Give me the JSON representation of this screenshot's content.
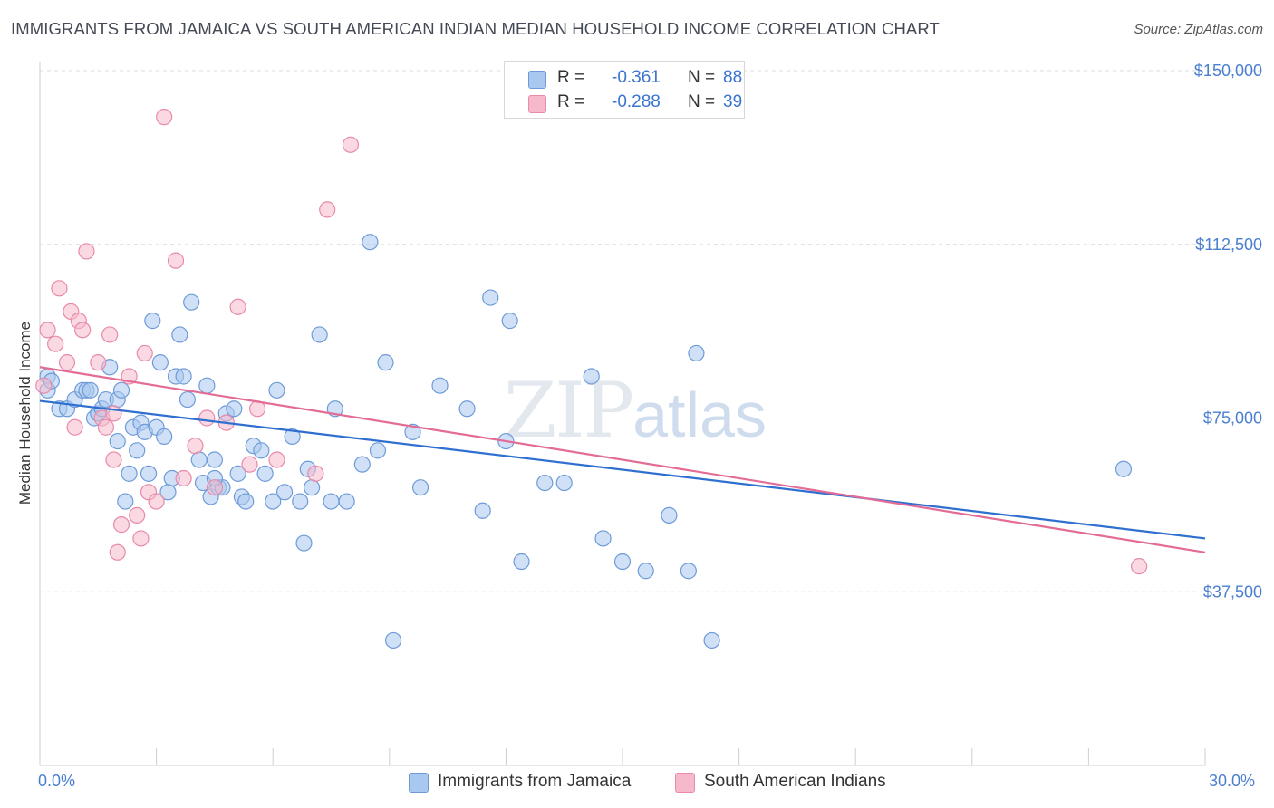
{
  "title": "IMMIGRANTS FROM JAMAICA VS SOUTH AMERICAN INDIAN MEDIAN HOUSEHOLD INCOME CORRELATION CHART",
  "source": "Source: ZipAtlas.com",
  "watermark": {
    "zip": "ZIP",
    "atlas": "atlas"
  },
  "legend": {
    "rows": [
      {
        "r_label": "R =",
        "r_value": "-0.361",
        "n_label": "N =",
        "n_value": "88",
        "color": "#a9c8f0"
      },
      {
        "r_label": "R =",
        "r_value": "-0.288",
        "n_label": "N =",
        "n_value": "39",
        "color": "#f6b9cc"
      }
    ]
  },
  "bottom_legend": [
    "Immigrants from Jamaica",
    "South American Indians"
  ],
  "colors": {
    "blue_fill": "#a9c8f0",
    "blue_stroke": "#6e9bd8",
    "blue_line": "#2f6fd0",
    "pink_fill": "#f6b9cc",
    "pink_stroke": "#e88aa8",
    "pink_line": "#e36c95",
    "tick_text": "#4a7fd0"
  },
  "chart_data": {
    "type": "scatter",
    "title": "IMMIGRANTS FROM JAMAICA VS SOUTH AMERICAN INDIAN MEDIAN HOUSEHOLD INCOME CORRELATION CHART",
    "xlabel": "",
    "ylabel": "Median Household Income",
    "xlim": [
      0,
      30
    ],
    "ylim": [
      0,
      155000
    ],
    "x_tick_labels": [
      "0.0%",
      "30.0%"
    ],
    "y_ticks": [
      37500,
      75000,
      112500,
      150000
    ],
    "y_tick_labels": [
      "$37,500",
      "$75,000",
      "$112,500",
      "$150,000"
    ],
    "grid": "horizontal dashed",
    "legend_position": "top-center",
    "series": [
      {
        "name": "Immigrants from Jamaica",
        "points": [
          [
            0.2,
            84000
          ],
          [
            0.2,
            81000
          ],
          [
            0.3,
            83000
          ],
          [
            0.5,
            77000
          ],
          [
            0.7,
            77000
          ],
          [
            0.9,
            79000
          ],
          [
            1.1,
            81000
          ],
          [
            1.2,
            81000
          ],
          [
            1.3,
            81000
          ],
          [
            1.4,
            75000
          ],
          [
            1.5,
            76000
          ],
          [
            1.6,
            77000
          ],
          [
            1.7,
            79000
          ],
          [
            1.8,
            86000
          ],
          [
            2.0,
            79000
          ],
          [
            2.0,
            70000
          ],
          [
            2.1,
            81000
          ],
          [
            2.3,
            63000
          ],
          [
            2.4,
            73000
          ],
          [
            2.5,
            68000
          ],
          [
            2.6,
            74000
          ],
          [
            2.7,
            72000
          ],
          [
            2.8,
            63000
          ],
          [
            2.9,
            96000
          ],
          [
            3.0,
            73000
          ],
          [
            3.1,
            87000
          ],
          [
            3.2,
            71000
          ],
          [
            3.3,
            59000
          ],
          [
            3.4,
            62000
          ],
          [
            3.5,
            84000
          ],
          [
            3.6,
            93000
          ],
          [
            3.7,
            84000
          ],
          [
            3.8,
            79000
          ],
          [
            3.9,
            100000
          ],
          [
            4.1,
            66000
          ],
          [
            4.2,
            61000
          ],
          [
            4.3,
            82000
          ],
          [
            4.4,
            58000
          ],
          [
            4.5,
            66000
          ],
          [
            4.6,
            60000
          ],
          [
            4.7,
            60000
          ],
          [
            4.8,
            76000
          ],
          [
            5.0,
            77000
          ],
          [
            5.1,
            63000
          ],
          [
            5.2,
            58000
          ],
          [
            5.3,
            57000
          ],
          [
            5.5,
            69000
          ],
          [
            5.7,
            68000
          ],
          [
            5.8,
            63000
          ],
          [
            6.0,
            57000
          ],
          [
            6.1,
            81000
          ],
          [
            6.3,
            59000
          ],
          [
            6.5,
            71000
          ],
          [
            6.7,
            57000
          ],
          [
            6.8,
            48000
          ],
          [
            7.0,
            60000
          ],
          [
            7.2,
            93000
          ],
          [
            7.5,
            57000
          ],
          [
            7.6,
            77000
          ],
          [
            7.9,
            57000
          ],
          [
            8.3,
            65000
          ],
          [
            8.5,
            113000
          ],
          [
            8.7,
            68000
          ],
          [
            8.9,
            87000
          ],
          [
            9.1,
            27000
          ],
          [
            9.6,
            72000
          ],
          [
            10.3,
            82000
          ],
          [
            11.0,
            77000
          ],
          [
            11.6,
            101000
          ],
          [
            12.0,
            70000
          ],
          [
            12.1,
            96000
          ],
          [
            12.4,
            44000
          ],
          [
            13.0,
            61000
          ],
          [
            13.5,
            61000
          ],
          [
            14.2,
            84000
          ],
          [
            14.5,
            49000
          ],
          [
            15.0,
            44000
          ],
          [
            15.6,
            42000
          ],
          [
            16.2,
            54000
          ],
          [
            16.7,
            42000
          ],
          [
            16.9,
            89000
          ],
          [
            17.3,
            27000
          ],
          [
            27.9,
            64000
          ],
          [
            4.5,
            62000
          ],
          [
            6.9,
            64000
          ],
          [
            2.2,
            57000
          ],
          [
            11.4,
            55000
          ],
          [
            9.8,
            60000
          ]
        ]
      },
      {
        "name": "South American Indians",
        "points": [
          [
            0.1,
            82000
          ],
          [
            0.2,
            94000
          ],
          [
            0.4,
            91000
          ],
          [
            0.5,
            103000
          ],
          [
            0.7,
            87000
          ],
          [
            0.8,
            98000
          ],
          [
            0.9,
            73000
          ],
          [
            1.0,
            96000
          ],
          [
            1.1,
            94000
          ],
          [
            1.2,
            111000
          ],
          [
            1.5,
            87000
          ],
          [
            1.6,
            75000
          ],
          [
            1.7,
            73000
          ],
          [
            1.8,
            93000
          ],
          [
            1.9,
            66000
          ],
          [
            2.0,
            46000
          ],
          [
            2.1,
            52000
          ],
          [
            2.3,
            84000
          ],
          [
            2.5,
            54000
          ],
          [
            2.6,
            49000
          ],
          [
            2.7,
            89000
          ],
          [
            2.8,
            59000
          ],
          [
            3.0,
            57000
          ],
          [
            3.2,
            140000
          ],
          [
            3.5,
            109000
          ],
          [
            3.7,
            62000
          ],
          [
            4.0,
            69000
          ],
          [
            4.3,
            75000
          ],
          [
            4.5,
            60000
          ],
          [
            4.8,
            74000
          ],
          [
            5.1,
            99000
          ],
          [
            5.4,
            65000
          ],
          [
            5.6,
            77000
          ],
          [
            6.1,
            66000
          ],
          [
            7.1,
            63000
          ],
          [
            7.4,
            120000
          ],
          [
            8.0,
            134000
          ],
          [
            28.3,
            43000
          ],
          [
            1.9,
            76000
          ]
        ]
      }
    ],
    "trendlines": [
      {
        "series": "Immigrants from Jamaica",
        "x": [
          0,
          30
        ],
        "y": [
          78700,
          49000
        ]
      },
      {
        "series": "South American Indians",
        "x": [
          0,
          30
        ],
        "y": [
          86000,
          46000
        ]
      }
    ]
  }
}
